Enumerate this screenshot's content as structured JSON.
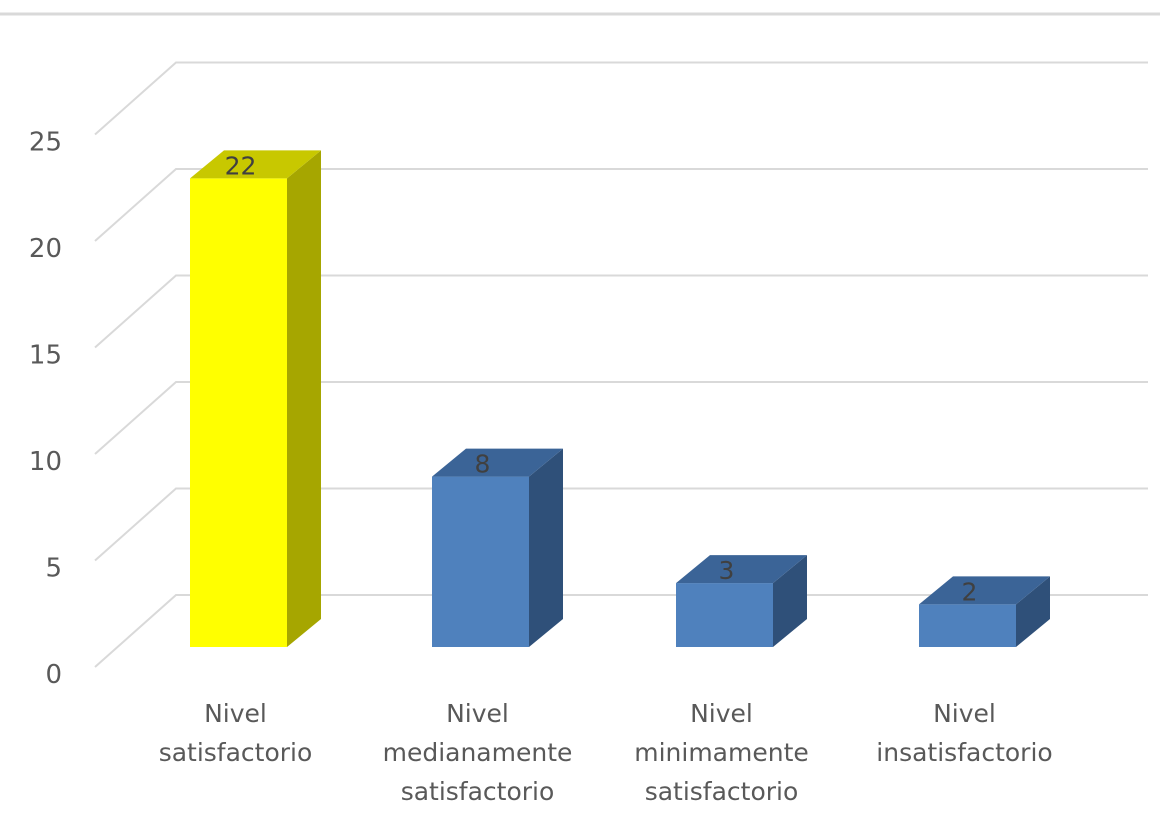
{
  "chart_data": {
    "type": "bar",
    "style": "3d-column",
    "title": "",
    "xlabel": "",
    "ylabel": "",
    "categories": [
      [
        "Nivel",
        "satisfactorio"
      ],
      [
        "Nivel",
        "medianamente",
        "satisfactorio"
      ],
      [
        "Nivel",
        "minimamente",
        "satisfactorio"
      ],
      [
        "Nivel",
        "insatisfactorio"
      ]
    ],
    "values": [
      22,
      8,
      3,
      2
    ],
    "data_labels": [
      "22",
      "8",
      "3",
      "2"
    ],
    "ylim": [
      0,
      25
    ],
    "yticks": [
      0,
      5,
      10,
      15,
      20,
      25
    ],
    "grid": true,
    "legend": "none",
    "colors": {
      "front": [
        "#ffff00",
        "#4f81bd",
        "#4f81bd",
        "#4f81bd"
      ],
      "side": [
        "#a6a600",
        "#2f5079",
        "#2f5079",
        "#2f5079"
      ],
      "top": [
        "#c8c800",
        "#3b6497",
        "#3b6497",
        "#3b6497"
      ],
      "grid": "#d9d9d9",
      "text": "#595959"
    }
  }
}
